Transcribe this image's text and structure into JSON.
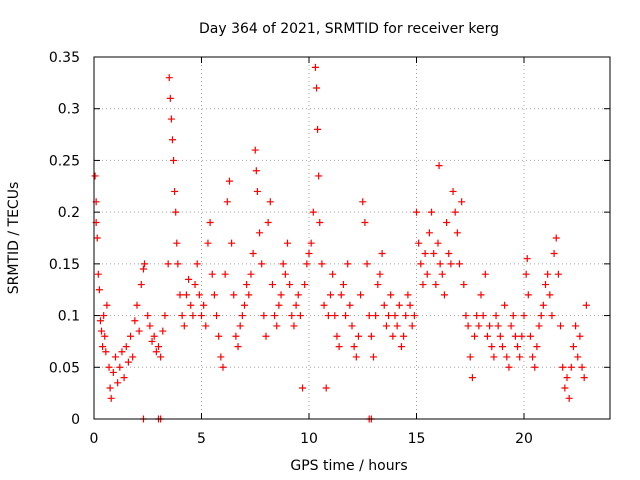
{
  "chart_data": {
    "type": "scatter",
    "title": "Day 364 of 2021, SRMTID for receiver kerg",
    "xlabel": "GPS time / hours",
    "ylabel": "SRMTID / TECUs",
    "xlim": [
      0,
      24
    ],
    "ylim": [
      0,
      0.35
    ],
    "x_ticks": [
      0,
      5,
      10,
      15,
      20
    ],
    "x_tick_labels": [
      "0",
      "5",
      "10",
      "15",
      "20"
    ],
    "y_ticks": [
      0,
      0.05,
      0.1,
      0.15,
      0.2,
      0.25,
      0.3,
      0.35
    ],
    "y_tick_labels": [
      "0",
      "0.05",
      "0.1",
      "0.15",
      "0.2",
      "0.25",
      "0.3",
      "0.35"
    ],
    "grid": true,
    "marker": "+",
    "marker_color": "#ff0000",
    "series": [
      {
        "name": "SRMTID",
        "points": [
          [
            0.05,
            0.235
          ],
          [
            0.1,
            0.21
          ],
          [
            0.1,
            0.19
          ],
          [
            0.15,
            0.175
          ],
          [
            0.2,
            0.14
          ],
          [
            0.25,
            0.125
          ],
          [
            0.3,
            0.095
          ],
          [
            0.35,
            0.085
          ],
          [
            0.4,
            0.07
          ],
          [
            0.45,
            0.1
          ],
          [
            0.5,
            0.08
          ],
          [
            0.55,
            0.065
          ],
          [
            0.6,
            0.11
          ],
          [
            0.7,
            0.05
          ],
          [
            0.75,
            0.03
          ],
          [
            0.8,
            0.02
          ],
          [
            0.9,
            0.045
          ],
          [
            1.0,
            0.06
          ],
          [
            1.1,
            0.035
          ],
          [
            1.2,
            0.05
          ],
          [
            1.3,
            0.065
          ],
          [
            1.4,
            0.04
          ],
          [
            1.5,
            0.07
          ],
          [
            1.6,
            0.055
          ],
          [
            1.7,
            0.08
          ],
          [
            1.8,
            0.06
          ],
          [
            1.9,
            0.095
          ],
          [
            2.0,
            0.11
          ],
          [
            2.1,
            0.085
          ],
          [
            2.2,
            0.13
          ],
          [
            2.3,
            0.145
          ],
          [
            2.35,
            0.15
          ],
          [
            2.5,
            0.1
          ],
          [
            2.6,
            0.09
          ],
          [
            2.7,
            0.075
          ],
          [
            2.8,
            0.08
          ],
          [
            2.9,
            0.065
          ],
          [
            3.0,
            0.07
          ],
          [
            3.1,
            0.06
          ],
          [
            3.2,
            0.085
          ],
          [
            3.3,
            0.1
          ],
          [
            3.45,
            0.15
          ],
          [
            3.5,
            0.33
          ],
          [
            3.55,
            0.31
          ],
          [
            3.6,
            0.29
          ],
          [
            3.65,
            0.27
          ],
          [
            3.7,
            0.25
          ],
          [
            3.75,
            0.22
          ],
          [
            3.8,
            0.2
          ],
          [
            3.85,
            0.17
          ],
          [
            3.9,
            0.15
          ],
          [
            4.0,
            0.12
          ],
          [
            4.1,
            0.1
          ],
          [
            4.2,
            0.09
          ],
          [
            4.3,
            0.12
          ],
          [
            4.4,
            0.135
          ],
          [
            4.5,
            0.11
          ],
          [
            4.6,
            0.1
          ],
          [
            4.7,
            0.13
          ],
          [
            4.8,
            0.15
          ],
          [
            4.9,
            0.12
          ],
          [
            5.0,
            0.1
          ],
          [
            5.1,
            0.11
          ],
          [
            5.2,
            0.09
          ],
          [
            5.3,
            0.17
          ],
          [
            5.4,
            0.19
          ],
          [
            5.5,
            0.14
          ],
          [
            5.6,
            0.12
          ],
          [
            5.7,
            0.1
          ],
          [
            5.8,
            0.08
          ],
          [
            5.9,
            0.06
          ],
          [
            6.0,
            0.05
          ],
          [
            6.1,
            0.14
          ],
          [
            6.2,
            0.21
          ],
          [
            6.3,
            0.23
          ],
          [
            6.4,
            0.17
          ],
          [
            6.5,
            0.12
          ],
          [
            6.6,
            0.08
          ],
          [
            6.7,
            0.07
          ],
          [
            6.8,
            0.09
          ],
          [
            6.9,
            0.1
          ],
          [
            7.0,
            0.11
          ],
          [
            7.1,
            0.13
          ],
          [
            7.2,
            0.12
          ],
          [
            7.3,
            0.14
          ],
          [
            7.4,
            0.16
          ],
          [
            7.5,
            0.26
          ],
          [
            7.55,
            0.24
          ],
          [
            7.6,
            0.22
          ],
          [
            7.7,
            0.18
          ],
          [
            7.8,
            0.15
          ],
          [
            7.9,
            0.1
          ],
          [
            8.0,
            0.08
          ],
          [
            8.1,
            0.19
          ],
          [
            8.2,
            0.21
          ],
          [
            8.3,
            0.13
          ],
          [
            8.4,
            0.1
          ],
          [
            8.5,
            0.09
          ],
          [
            8.6,
            0.11
          ],
          [
            8.7,
            0.12
          ],
          [
            8.8,
            0.15
          ],
          [
            8.9,
            0.14
          ],
          [
            9.0,
            0.17
          ],
          [
            9.1,
            0.13
          ],
          [
            9.2,
            0.1
          ],
          [
            9.3,
            0.09
          ],
          [
            9.4,
            0.11
          ],
          [
            9.5,
            0.12
          ],
          [
            9.6,
            0.1
          ],
          [
            9.7,
            0.03
          ],
          [
            9.8,
            0.13
          ],
          [
            9.9,
            0.15
          ],
          [
            10.0,
            0.16
          ],
          [
            10.1,
            0.17
          ],
          [
            10.2,
            0.2
          ],
          [
            10.3,
            0.34
          ],
          [
            10.35,
            0.32
          ],
          [
            10.4,
            0.28
          ],
          [
            10.45,
            0.235
          ],
          [
            10.5,
            0.19
          ],
          [
            10.6,
            0.15
          ],
          [
            10.7,
            0.11
          ],
          [
            10.8,
            0.03
          ],
          [
            10.9,
            0.1
          ],
          [
            11.0,
            0.12
          ],
          [
            11.1,
            0.14
          ],
          [
            11.2,
            0.1
          ],
          [
            11.3,
            0.08
          ],
          [
            11.4,
            0.07
          ],
          [
            11.5,
            0.12
          ],
          [
            11.6,
            0.13
          ],
          [
            11.7,
            0.1
          ],
          [
            11.8,
            0.15
          ],
          [
            11.9,
            0.11
          ],
          [
            12.0,
            0.09
          ],
          [
            12.1,
            0.07
          ],
          [
            12.2,
            0.06
          ],
          [
            12.3,
            0.08
          ],
          [
            12.4,
            0.12
          ],
          [
            12.5,
            0.21
          ],
          [
            12.6,
            0.19
          ],
          [
            12.7,
            0.15
          ],
          [
            12.8,
            0.1
          ],
          [
            12.9,
            0.08
          ],
          [
            13.0,
            0.06
          ],
          [
            13.1,
            0.1
          ],
          [
            13.2,
            0.13
          ],
          [
            13.3,
            0.14
          ],
          [
            13.4,
            0.16
          ],
          [
            13.5,
            0.11
          ],
          [
            13.6,
            0.09
          ],
          [
            13.7,
            0.1
          ],
          [
            13.8,
            0.12
          ],
          [
            13.9,
            0.08
          ],
          [
            14.0,
            0.1
          ],
          [
            14.1,
            0.09
          ],
          [
            14.2,
            0.11
          ],
          [
            14.3,
            0.07
          ],
          [
            14.4,
            0.08
          ],
          [
            14.5,
            0.1
          ],
          [
            14.6,
            0.12
          ],
          [
            14.7,
            0.11
          ],
          [
            14.8,
            0.09
          ],
          [
            14.9,
            0.1
          ],
          [
            15.0,
            0.2
          ],
          [
            15.1,
            0.17
          ],
          [
            15.2,
            0.15
          ],
          [
            15.3,
            0.13
          ],
          [
            15.4,
            0.16
          ],
          [
            15.5,
            0.14
          ],
          [
            15.6,
            0.18
          ],
          [
            15.7,
            0.2
          ],
          [
            15.8,
            0.16
          ],
          [
            15.9,
            0.13
          ],
          [
            16.0,
            0.17
          ],
          [
            16.05,
            0.245
          ],
          [
            16.1,
            0.15
          ],
          [
            16.2,
            0.14
          ],
          [
            16.3,
            0.12
          ],
          [
            16.4,
            0.19
          ],
          [
            16.5,
            0.16
          ],
          [
            16.6,
            0.15
          ],
          [
            16.7,
            0.22
          ],
          [
            16.8,
            0.2
          ],
          [
            16.9,
            0.18
          ],
          [
            17.0,
            0.15
          ],
          [
            17.1,
            0.21
          ],
          [
            17.2,
            0.13
          ],
          [
            17.3,
            0.1
          ],
          [
            17.4,
            0.09
          ],
          [
            17.5,
            0.06
          ],
          [
            17.6,
            0.04
          ],
          [
            17.7,
            0.08
          ],
          [
            17.8,
            0.1
          ],
          [
            17.9,
            0.09
          ],
          [
            18.0,
            0.12
          ],
          [
            18.1,
            0.1
          ],
          [
            18.2,
            0.14
          ],
          [
            18.3,
            0.08
          ],
          [
            18.4,
            0.09
          ],
          [
            18.5,
            0.07
          ],
          [
            18.6,
            0.06
          ],
          [
            18.7,
            0.1
          ],
          [
            18.8,
            0.09
          ],
          [
            18.9,
            0.08
          ],
          [
            19.0,
            0.07
          ],
          [
            19.1,
            0.11
          ],
          [
            19.2,
            0.06
          ],
          [
            19.3,
            0.05
          ],
          [
            19.4,
            0.09
          ],
          [
            19.5,
            0.1
          ],
          [
            19.6,
            0.08
          ],
          [
            19.7,
            0.07
          ],
          [
            19.8,
            0.06
          ],
          [
            19.9,
            0.08
          ],
          [
            20.0,
            0.1
          ],
          [
            20.1,
            0.14
          ],
          [
            20.15,
            0.155
          ],
          [
            20.2,
            0.12
          ],
          [
            20.3,
            0.08
          ],
          [
            20.4,
            0.06
          ],
          [
            20.5,
            0.05
          ],
          [
            20.6,
            0.07
          ],
          [
            20.7,
            0.09
          ],
          [
            20.8,
            0.1
          ],
          [
            20.9,
            0.11
          ],
          [
            21.0,
            0.13
          ],
          [
            21.1,
            0.14
          ],
          [
            21.2,
            0.12
          ],
          [
            21.3,
            0.1
          ],
          [
            21.4,
            0.16
          ],
          [
            21.5,
            0.175
          ],
          [
            21.6,
            0.14
          ],
          [
            21.7,
            0.09
          ],
          [
            21.8,
            0.05
          ],
          [
            21.9,
            0.03
          ],
          [
            22.0,
            0.04
          ],
          [
            22.1,
            0.02
          ],
          [
            22.2,
            0.05
          ],
          [
            22.3,
            0.07
          ],
          [
            22.4,
            0.09
          ],
          [
            22.5,
            0.06
          ],
          [
            22.6,
            0.08
          ],
          [
            22.7,
            0.05
          ],
          [
            22.8,
            0.04
          ],
          [
            22.9,
            0.11
          ]
        ],
        "zero_points": [
          2.3,
          3.0,
          3.1,
          12.8,
          12.9
        ]
      }
    ]
  }
}
